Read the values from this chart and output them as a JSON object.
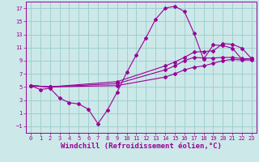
{
  "xlabel": "Windchill (Refroidissement éolien,°C)",
  "bg_color": "#cce8e8",
  "grid_color": "#99cccc",
  "line_color": "#990099",
  "marker": "D",
  "markersize": 2.0,
  "linewidth": 0.8,
  "xlim": [
    -0.5,
    23.5
  ],
  "ylim": [
    -2,
    18
  ],
  "xticks": [
    0,
    1,
    2,
    3,
    4,
    5,
    6,
    7,
    8,
    9,
    10,
    11,
    12,
    13,
    14,
    15,
    16,
    17,
    18,
    19,
    20,
    21,
    22,
    23
  ],
  "yticks": [
    -1,
    1,
    3,
    5,
    7,
    9,
    11,
    13,
    15,
    17
  ],
  "curve1_x": [
    0,
    1,
    2,
    3,
    4,
    5,
    6,
    7,
    8,
    9,
    10,
    11,
    12,
    13,
    14,
    15,
    16,
    17,
    18,
    19,
    20,
    21,
    22,
    23
  ],
  "curve1_y": [
    5.2,
    4.6,
    4.8,
    3.3,
    2.6,
    2.4,
    1.6,
    -0.6,
    1.5,
    4.2,
    7.2,
    9.9,
    12.5,
    15.3,
    17.0,
    17.3,
    16.5,
    13.2,
    9.2,
    11.4,
    11.3,
    10.9,
    9.2,
    9.3
  ],
  "curve2_x": [
    0,
    2,
    9,
    14,
    15,
    16,
    17,
    18,
    19,
    20,
    21,
    22,
    23
  ],
  "curve2_y": [
    5.2,
    5.0,
    5.8,
    8.2,
    8.8,
    9.5,
    10.3,
    10.4,
    10.5,
    11.6,
    11.5,
    10.9,
    9.3
  ],
  "curve3_x": [
    0,
    2,
    9,
    14,
    15,
    16,
    17,
    18,
    19,
    20,
    21,
    22,
    23
  ],
  "curve3_y": [
    5.2,
    5.0,
    5.5,
    7.6,
    8.2,
    9.0,
    9.5,
    9.4,
    9.4,
    9.5,
    9.5,
    9.3,
    9.3
  ],
  "curve4_x": [
    0,
    2,
    9,
    14,
    15,
    16,
    17,
    18,
    19,
    20,
    21,
    22,
    23
  ],
  "curve4_y": [
    5.2,
    5.0,
    5.2,
    6.5,
    7.0,
    7.6,
    8.0,
    8.2,
    8.6,
    9.0,
    9.2,
    9.1,
    9.1
  ],
  "xlabel_fontsize": 6.5,
  "tick_fontsize": 5.0
}
